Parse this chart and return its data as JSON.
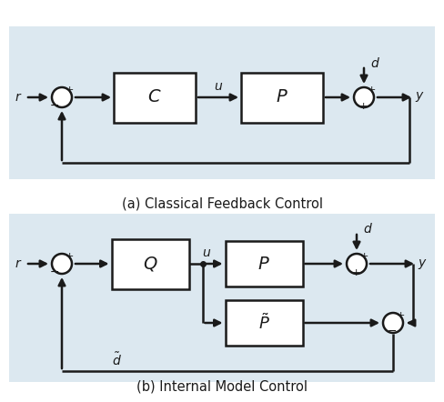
{
  "fig_width": 4.88,
  "fig_height": 4.42,
  "dpi": 100,
  "bg_color": "#dce8f0",
  "box_color": "#ffffff",
  "line_color": "#1a1a1a",
  "text_color": "#1a1a1a",
  "caption_a": "(a) Classical Feedback Control",
  "caption_b": "(b) Internal Model Control"
}
